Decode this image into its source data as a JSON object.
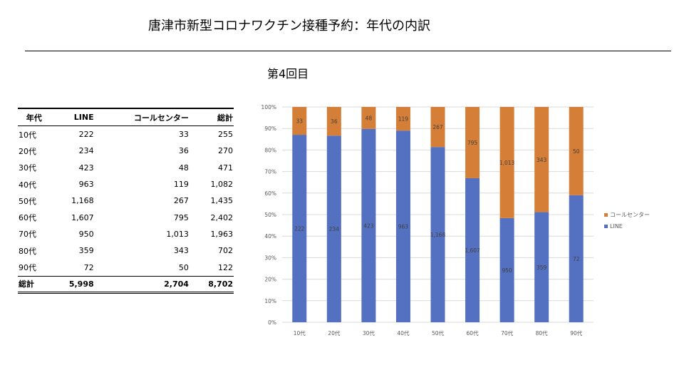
{
  "title": "唐津市新型コロナワクチン接種予約：年代の内訳",
  "subtitle": "第4回目",
  "table": {
    "headers": [
      "年代",
      "LINE",
      "コールセンター",
      "総計"
    ],
    "rows": [
      [
        "10代",
        "222",
        "33",
        "255"
      ],
      [
        "20代",
        "234",
        "36",
        "270"
      ],
      [
        "30代",
        "423",
        "48",
        "471"
      ],
      [
        "40代",
        "963",
        "119",
        "1,082"
      ],
      [
        "50代",
        "1,168",
        "267",
        "1,435"
      ],
      [
        "60代",
        "1,607",
        "795",
        "2,402"
      ],
      [
        "70代",
        "950",
        "1,013",
        "1,963"
      ],
      [
        "80代",
        "359",
        "343",
        "702"
      ],
      [
        "90代",
        "72",
        "50",
        "122"
      ]
    ],
    "total": [
      "総計",
      "5,998",
      "2,704",
      "8,702"
    ]
  },
  "chart_data": {
    "type": "bar",
    "stacked": "percent",
    "categories": [
      "10代",
      "20代",
      "30代",
      "40代",
      "50代",
      "60代",
      "70代",
      "80代",
      "90代"
    ],
    "series": [
      {
        "name": "LINE",
        "color": "#5470C0",
        "values": [
          222,
          234,
          423,
          963,
          1168,
          1607,
          950,
          359,
          72
        ],
        "labels": [
          "222",
          "234",
          "423",
          "963",
          "1,168",
          "1,607",
          "950",
          "359",
          "72"
        ]
      },
      {
        "name": "コールセンター",
        "color": "#D57E37",
        "values": [
          33,
          36,
          48,
          119,
          267,
          795,
          1013,
          343,
          50
        ],
        "labels": [
          "33",
          "36",
          "48",
          "119",
          "267",
          "795",
          "1,013",
          "343",
          "50"
        ]
      }
    ],
    "yticks": [
      "0%",
      "10%",
      "20%",
      "30%",
      "40%",
      "50%",
      "60%",
      "70%",
      "80%",
      "90%",
      "100%"
    ],
    "ylim": [
      0,
      100
    ],
    "legend": "right",
    "grid": true
  }
}
